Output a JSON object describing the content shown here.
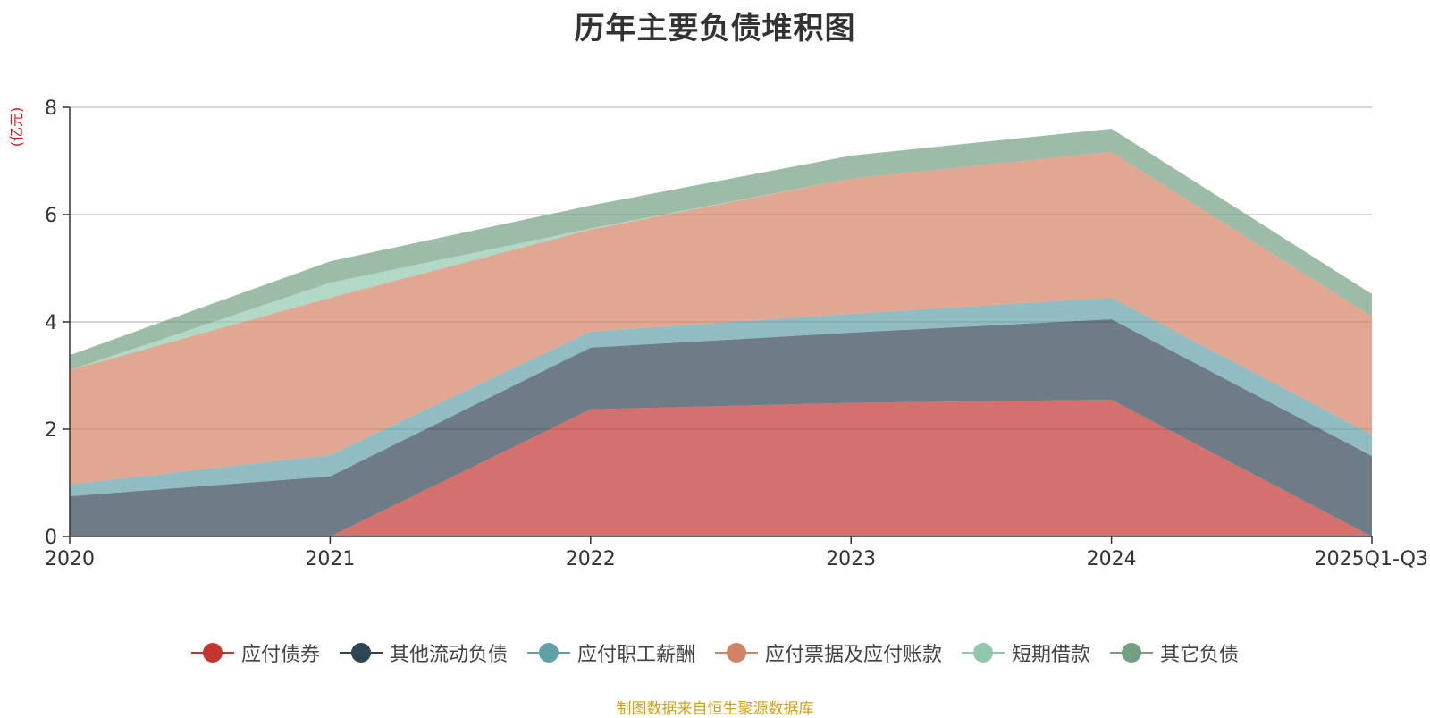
{
  "chart_data": {
    "type": "area",
    "stacked": true,
    "title": "历年主要负债堆积图",
    "ylabel": "(亿元)",
    "xlabel": "",
    "categories": [
      "2020",
      "2021",
      "2022",
      "2023",
      "2024",
      "2025Q1-Q3"
    ],
    "ylim": [
      0,
      8
    ],
    "yticks": [
      0,
      2,
      4,
      6,
      8
    ],
    "grid": true,
    "legend_position": "bottom",
    "series": [
      {
        "name": "应付债券",
        "color": "#c23531",
        "values": [
          0,
          0,
          2.37,
          2.49,
          2.55,
          0
        ]
      },
      {
        "name": "其他流动负债",
        "color": "#2f4554",
        "values": [
          0.75,
          1.12,
          1.15,
          1.31,
          1.5,
          1.5
        ]
      },
      {
        "name": "应付职工薪酬",
        "color": "#61a0a8",
        "values": [
          0.22,
          0.4,
          0.3,
          0.35,
          0.4,
          0.4
        ]
      },
      {
        "name": "应付票据及应付账款",
        "color": "#d48265",
        "values": [
          2.13,
          2.93,
          1.9,
          2.52,
          2.72,
          2.2
        ]
      },
      {
        "name": "短期借款",
        "color": "#91c7ae",
        "values": [
          0,
          0.28,
          0.02,
          0,
          0,
          0
        ]
      },
      {
        "name": "其它负债",
        "color": "#749f83",
        "values": [
          0.28,
          0.4,
          0.43,
          0.43,
          0.43,
          0.42
        ]
      }
    ]
  },
  "source_note": "制图数据来自恒生聚源数据库"
}
